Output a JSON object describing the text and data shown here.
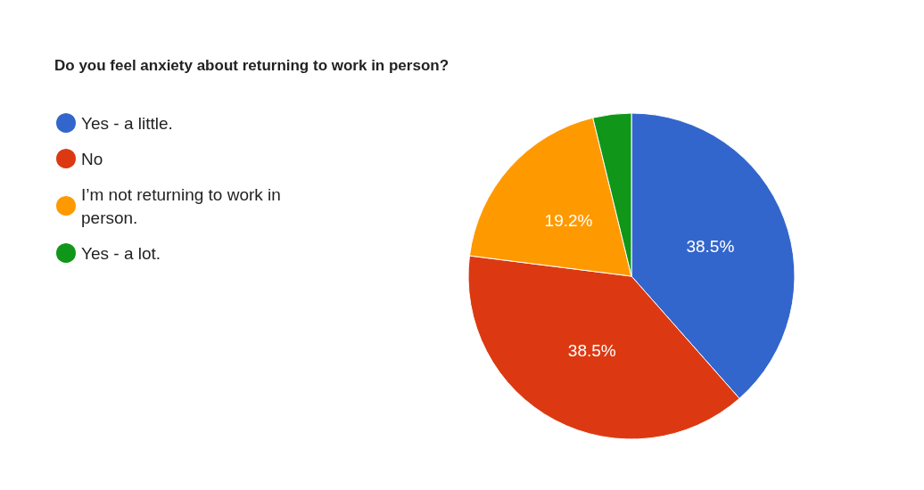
{
  "chart_data": {
    "type": "pie",
    "title": "Do you feel anxiety about returning to work in person?",
    "categories": [
      "Yes - a little.",
      "No",
      "I’m not returning to work in person.",
      "Yes - a lot."
    ],
    "values": [
      38.5,
      38.5,
      19.2,
      3.8
    ],
    "colors": [
      "#3366cc",
      "#dc3912",
      "#ff9900",
      "#109618"
    ],
    "value_labels": [
      "38.5%",
      "38.5%",
      "19.2%",
      null
    ],
    "legend": "left"
  }
}
